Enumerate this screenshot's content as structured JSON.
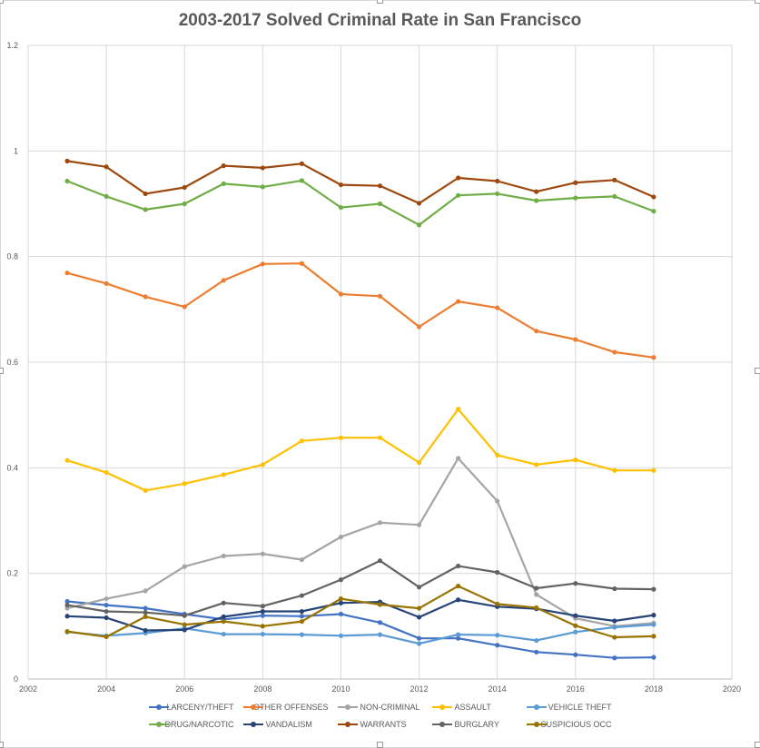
{
  "chart_data": {
    "type": "line",
    "title": "2003-2017 Solved Criminal Rate in San Francisco",
    "xlabel": "",
    "ylabel": "",
    "xlim": [
      2002,
      2020
    ],
    "ylim": [
      0,
      1.2
    ],
    "xticks": [
      "2002",
      "2004",
      "2006",
      "2008",
      "2010",
      "2012",
      "2014",
      "2016",
      "2018",
      "2020"
    ],
    "yticks": [
      "0",
      "0.2",
      "0.4",
      "0.6",
      "0.8",
      "1",
      "1.2"
    ],
    "grid": true,
    "legend_position": "bottom",
    "x": [
      2003,
      2004,
      2005,
      2006,
      2007,
      2008,
      2009,
      2010,
      2011,
      2012,
      2013,
      2014,
      2015,
      2016,
      2017,
      2018
    ],
    "series": [
      {
        "name": "LARCENY/THEFT",
        "color": "#4472c4",
        "values": [
          0.147,
          0.14,
          0.134,
          0.123,
          0.113,
          0.12,
          0.119,
          0.123,
          0.107,
          0.077,
          0.077,
          0.064,
          0.051,
          0.046,
          0.04,
          0.041
        ]
      },
      {
        "name": "OTHER OFFENSES",
        "color": "#ed7d31",
        "values": [
          0.769,
          0.749,
          0.724,
          0.705,
          0.755,
          0.786,
          0.787,
          0.729,
          0.725,
          0.667,
          0.715,
          0.703,
          0.659,
          0.643,
          0.619,
          0.609
        ]
      },
      {
        "name": "NON-CRIMINAL",
        "color": "#a5a5a5",
        "values": [
          0.134,
          0.152,
          0.167,
          0.213,
          0.233,
          0.237,
          0.226,
          0.269,
          0.296,
          0.292,
          0.418,
          0.337,
          0.16,
          0.115,
          0.1,
          0.106
        ]
      },
      {
        "name": "ASSAULT",
        "color": "#ffc000",
        "values": [
          0.414,
          0.391,
          0.357,
          0.37,
          0.387,
          0.406,
          0.451,
          0.457,
          0.457,
          0.41,
          0.511,
          0.424,
          0.406,
          0.415,
          0.395,
          0.395
        ]
      },
      {
        "name": "VEHICLE THEFT",
        "color": "#5b9bd5",
        "values": [
          0.089,
          0.082,
          0.087,
          0.096,
          0.085,
          0.085,
          0.084,
          0.082,
          0.084,
          0.067,
          0.084,
          0.083,
          0.073,
          0.089,
          0.098,
          0.103
        ]
      },
      {
        "name": "DRUG/NARCOTIC",
        "color": "#70ad47",
        "values": [
          0.943,
          0.914,
          0.889,
          0.9,
          0.938,
          0.932,
          0.944,
          0.893,
          0.9,
          0.86,
          0.916,
          0.919,
          0.906,
          0.911,
          0.914,
          0.886
        ]
      },
      {
        "name": "VANDALISM",
        "color": "#264478",
        "values": [
          0.119,
          0.116,
          0.092,
          0.093,
          0.118,
          0.128,
          0.128,
          0.144,
          0.146,
          0.117,
          0.15,
          0.137,
          0.133,
          0.12,
          0.11,
          0.121
        ]
      },
      {
        "name": "WARRANTS",
        "color": "#9e480e",
        "values": [
          0.981,
          0.97,
          0.919,
          0.931,
          0.972,
          0.968,
          0.976,
          0.936,
          0.934,
          0.901,
          0.949,
          0.943,
          0.923,
          0.94,
          0.945,
          0.913
        ]
      },
      {
        "name": "BURGLARY",
        "color": "#636363",
        "values": [
          0.14,
          0.128,
          0.126,
          0.12,
          0.144,
          0.138,
          0.158,
          0.188,
          0.224,
          0.174,
          0.214,
          0.202,
          0.172,
          0.181,
          0.171,
          0.17
        ]
      },
      {
        "name": "SUSPICIOUS OCC",
        "color": "#997300",
        "values": [
          0.09,
          0.08,
          0.118,
          0.103,
          0.109,
          0.1,
          0.109,
          0.152,
          0.141,
          0.134,
          0.176,
          0.142,
          0.135,
          0.101,
          0.079,
          0.081
        ]
      }
    ]
  }
}
